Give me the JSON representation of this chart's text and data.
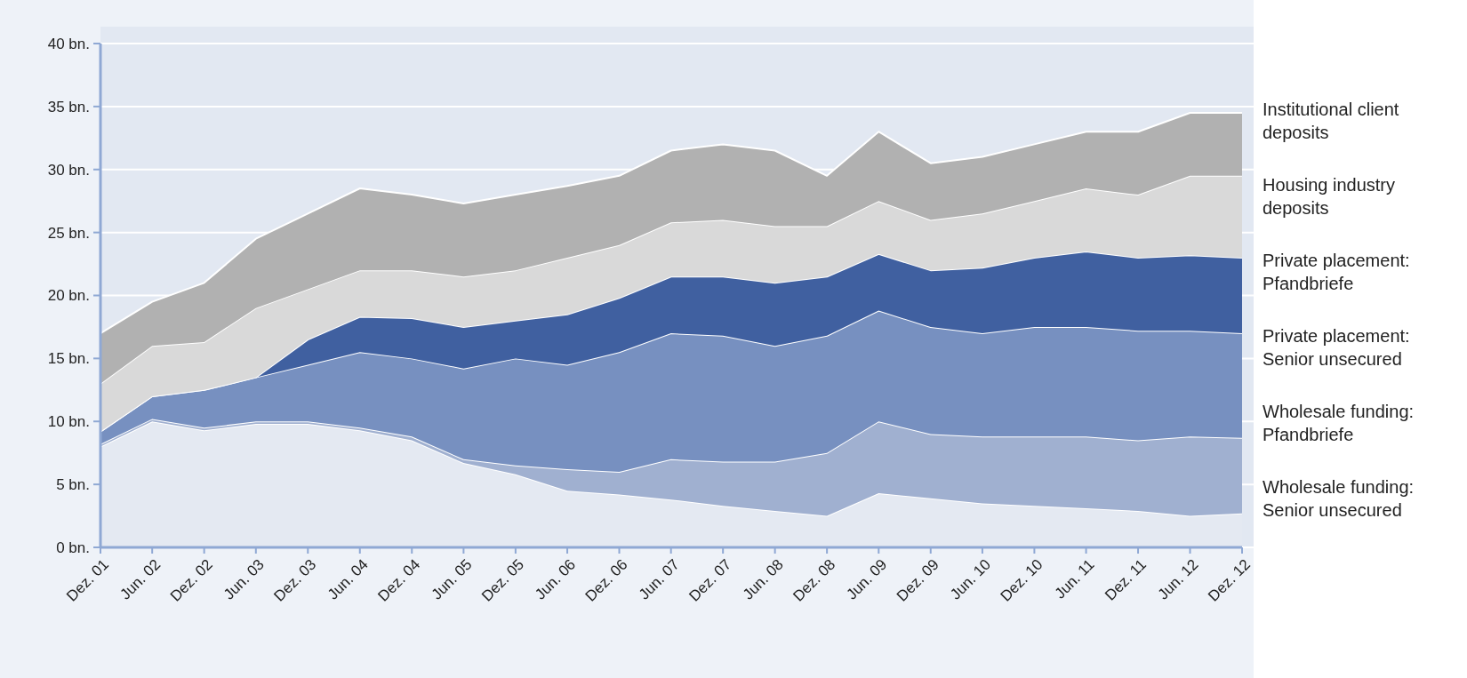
{
  "chart_data": {
    "type": "area",
    "stacked": true,
    "x": [
      "2001-12",
      "2002-06",
      "2002-12",
      "2003-06",
      "2003-12",
      "2004-06",
      "2004-12",
      "2005-06",
      "2005-12",
      "2006-06",
      "2006-12",
      "2007-06",
      "2007-12",
      "2008-06",
      "2008-12",
      "2009-06",
      "2009-12",
      "2010-06",
      "2010-12",
      "2011-06",
      "2011-12",
      "2012-06",
      "2012-12"
    ],
    "series": [
      {
        "name": "Wholesale funding: Senior unsecured",
        "color": "#e4e9f2",
        "values": [
          8,
          10,
          9.3,
          9.8,
          9.8,
          9.3,
          8.5,
          6.7,
          5.8,
          4.5,
          4.2,
          3.8,
          3.3,
          2.9,
          2.5,
          4.3,
          3.9,
          3.5,
          3.3,
          3.1,
          2.9,
          2.5,
          2.7
        ]
      },
      {
        "name": "Wholesale funding: Pfandbriefe",
        "color": "#a0b0d0",
        "values": [
          0.2,
          0.2,
          0.2,
          0.2,
          0.2,
          0.2,
          0.3,
          0.3,
          0.7,
          1.7,
          1.8,
          3.2,
          3.5,
          3.9,
          5.0,
          5.7,
          5.1,
          5.3,
          5.5,
          5.7,
          5.6,
          6.3,
          6.0
        ]
      },
      {
        "name": "Private placement: Senior unsecured",
        "color": "#7790c0",
        "values": [
          1.0,
          1.8,
          3.0,
          3.5,
          4.5,
          6.0,
          6.2,
          7.2,
          8.5,
          8.3,
          9.5,
          10.0,
          10.0,
          9.2,
          9.3,
          8.8,
          8.5,
          8.2,
          8.7,
          8.7,
          8.7,
          8.4,
          8.3
        ]
      },
      {
        "name": "Private placement: Pfandbriefe",
        "color": "#4060a0",
        "values": [
          0,
          0,
          0,
          0,
          2.0,
          2.8,
          3.2,
          3.3,
          3.0,
          4.0,
          4.3,
          4.5,
          4.7,
          5.0,
          4.7,
          4.5,
          4.5,
          5.2,
          5.5,
          6.0,
          5.8,
          6.0,
          6.0
        ]
      },
      {
        "name": "Housing industry deposits",
        "color": "#d9d9d9",
        "values": [
          3.8,
          4.0,
          3.8,
          5.5,
          4.0,
          3.7,
          3.8,
          4.0,
          4.0,
          4.5,
          4.2,
          4.3,
          4.5,
          4.5,
          4.0,
          4.2,
          4.0,
          4.3,
          4.5,
          5.0,
          5.0,
          6.3,
          6.5
        ]
      },
      {
        "name": "Institutional client deposits",
        "color": "#b1b1b1",
        "values": [
          4.0,
          3.5,
          4.7,
          5.5,
          6.0,
          6.5,
          6.0,
          5.8,
          6.0,
          5.7,
          5.5,
          5.7,
          6.0,
          6.0,
          4.0,
          5.5,
          4.5,
          4.5,
          4.5,
          4.5,
          5.0,
          5.0,
          5.0
        ]
      }
    ],
    "xlim": [
      "2001-12",
      "2012-12"
    ],
    "xticks": [
      {
        "value": "2001-12",
        "label": "Dez. 01"
      },
      {
        "value": "2002-06",
        "label": "Jun. 02"
      },
      {
        "value": "2002-12",
        "label": "Dez. 02"
      },
      {
        "value": "2003-06",
        "label": "Jun. 03"
      },
      {
        "value": "2003-12",
        "label": "Dez. 03"
      },
      {
        "value": "2004-06",
        "label": "Jun. 04"
      },
      {
        "value": "2004-12",
        "label": "Dez. 04"
      },
      {
        "value": "2005-06",
        "label": "Jun. 05"
      },
      {
        "value": "2005-12",
        "label": "Dez. 05"
      },
      {
        "value": "2006-06",
        "label": "Jun. 06"
      },
      {
        "value": "2006-12",
        "label": "Dez. 06"
      },
      {
        "value": "2007-06",
        "label": "Jun. 07"
      },
      {
        "value": "2007-12",
        "label": "Dez. 07"
      },
      {
        "value": "2008-06",
        "label": "Jun. 08"
      },
      {
        "value": "2008-12",
        "label": "Dez. 08"
      },
      {
        "value": "2009-06",
        "label": "Jun. 09"
      },
      {
        "value": "2009-12",
        "label": "Dez. 09"
      },
      {
        "value": "2010-06",
        "label": "Jun. 10"
      },
      {
        "value": "2010-12",
        "label": "Dez. 10"
      },
      {
        "value": "2011-06",
        "label": "Jun. 11"
      },
      {
        "value": "2011-12",
        "label": "Dez. 11"
      },
      {
        "value": "2012-06",
        "label": "Jun. 12"
      },
      {
        "value": "2012-12",
        "label": "Dez. 12"
      }
    ],
    "ylim": [
      0,
      40
    ],
    "yticks": [
      {
        "value": 0,
        "label": "0 bn."
      },
      {
        "value": 5,
        "label": "5 bn."
      },
      {
        "value": 10,
        "label": "10 bn."
      },
      {
        "value": 15,
        "label": "15 bn."
      },
      {
        "value": 20,
        "label": "20 bn."
      },
      {
        "value": 25,
        "label": "25 bn."
      },
      {
        "value": 30,
        "label": "30 bn."
      },
      {
        "value": 35,
        "label": "35 bn."
      },
      {
        "value": 40,
        "label": "40 bn."
      }
    ],
    "grid": "y",
    "legend": "right"
  }
}
